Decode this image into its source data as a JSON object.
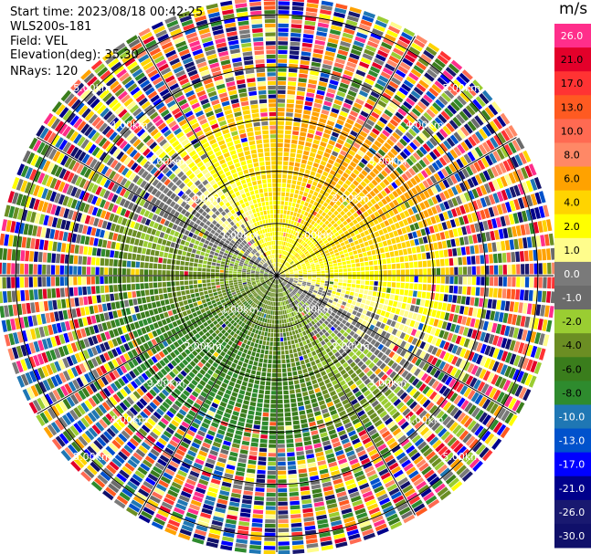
{
  "info": {
    "start_time": "Start time: 2023/08/18 00:42:25",
    "site": "WLS200s-181",
    "field": "Field: VEL",
    "elevation": "Elevation(deg): 35.30",
    "nrays": "NRays: 120"
  },
  "colorbar": {
    "unit": "m/s",
    "levels": [
      {
        "label": "26.0",
        "color": "#ff2e8b"
      },
      {
        "label": "21.0",
        "color": "#e3002a"
      },
      {
        "label": "17.0",
        "color": "#ff3333"
      },
      {
        "label": "13.0",
        "color": "#ff5a21"
      },
      {
        "label": "10.0",
        "color": "#ff6a52"
      },
      {
        "label": "8.0",
        "color": "#ff8866"
      },
      {
        "label": "6.0",
        "color": "#ffa200"
      },
      {
        "label": "4.0",
        "color": "#ffd400"
      },
      {
        "label": "2.0",
        "color": "#ffff00"
      },
      {
        "label": "1.0",
        "color": "#fffd8c"
      },
      {
        "label": "0.0",
        "color": "#7a7a7a"
      },
      {
        "label": "-1.0",
        "color": "#6b6b6b"
      },
      {
        "label": "-2.0",
        "color": "#9acd32"
      },
      {
        "label": "-4.0",
        "color": "#6b8e23"
      },
      {
        "label": "-6.0",
        "color": "#3a7d1c"
      },
      {
        "label": "-8.0",
        "color": "#2e8b2e"
      },
      {
        "label": "-10.0",
        "color": "#1f77b4"
      },
      {
        "label": "-13.0",
        "color": "#0052cc"
      },
      {
        "label": "-17.0",
        "color": "#0000ff"
      },
      {
        "label": "-21.0",
        "color": "#00008b"
      },
      {
        "label": "-26.0",
        "color": "#191970"
      },
      {
        "label": "-30.0",
        "color": "#10106a"
      }
    ]
  },
  "chart_data": {
    "type": "heatmap",
    "projection": "PPI",
    "field": "VEL",
    "units": "m/s",
    "nrays": 120,
    "elevation_deg": 35.3,
    "range_rings_km": [
      1,
      2,
      3,
      4,
      5
    ],
    "range_ring_labels": [
      "1.00km",
      "2.00km",
      "3.00km",
      "4.00km",
      "5.00km"
    ],
    "spoke_angles_deg": [
      0,
      30,
      60,
      90,
      120,
      150,
      180,
      210,
      240,
      270,
      300,
      330
    ],
    "max_range_km": 5.3,
    "pattern": {
      "near_range_km": 3.2,
      "positive_sector_deg": [
        280,
        90
      ],
      "negative_sector_deg": [
        90,
        280
      ],
      "outer_noise": true
    },
    "colorscale_bounds": [
      -30,
      30
    ]
  }
}
